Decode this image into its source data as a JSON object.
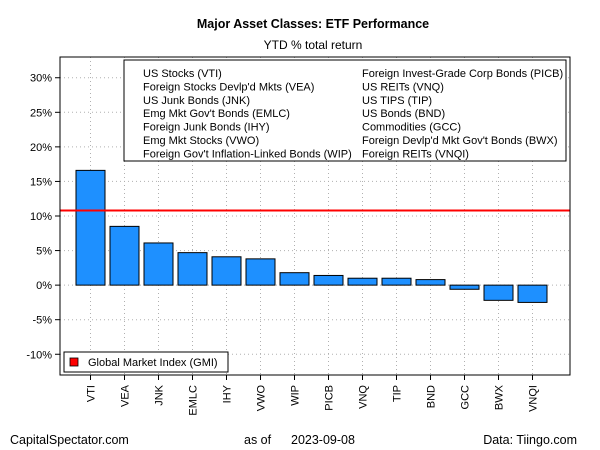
{
  "chart_data": {
    "type": "bar",
    "title": "Major Asset Classes: ETF Performance",
    "subtitle": "YTD % total return",
    "categories": [
      "VTI",
      "VEA",
      "JNK",
      "EMLC",
      "IHY",
      "VWO",
      "WIP",
      "PICB",
      "VNQ",
      "TIP",
      "BND",
      "GCC",
      "BWX",
      "VNQI"
    ],
    "values": [
      16.6,
      8.5,
      6.1,
      4.7,
      4.1,
      3.8,
      1.8,
      1.4,
      1.0,
      1.0,
      0.8,
      -0.6,
      -2.2,
      -2.5
    ],
    "bar_color": "#1e90ff",
    "reference_line": {
      "value": 10.8,
      "color": "#ff0000",
      "label": "Global Market Index (GMI)"
    },
    "ylim": [
      -13,
      33
    ],
    "yticks": [
      -10,
      -5,
      0,
      5,
      10,
      15,
      20,
      25,
      30
    ],
    "ytick_labels": [
      "-10%",
      "-5%",
      "0%",
      "5%",
      "10%",
      "15%",
      "20%",
      "25%",
      "30%"
    ],
    "grid": true,
    "legend_placement": "top-right",
    "legend_entries": [
      "US Stocks (VTI)",
      "Foreign Stocks Devlp'd Mkts (VEA)",
      "US Junk Bonds (JNK)",
      "Emg Mkt Gov't Bonds (EMLC)",
      "Foreign Junk Bonds (IHY)",
      "Emg Mkt Stocks (VWO)",
      "Foreign Gov't Inflation-Linked Bonds (WIP)",
      "Foreign Invest-Grade Corp Bonds (PICB)",
      "US REITs (VNQ)",
      "US TIPS (TIP)",
      "US Bonds (BND)",
      "Commodities (GCC)",
      "Foreign Devlp'd Mkt Gov't Bonds (BWX)",
      "Foreign REITs (VNQI)"
    ]
  },
  "footer": {
    "left": "CapitalSpectator.com",
    "center_prefix": "as of",
    "center_date": "2023-09-08",
    "right": "Data: Tiingo.com"
  }
}
